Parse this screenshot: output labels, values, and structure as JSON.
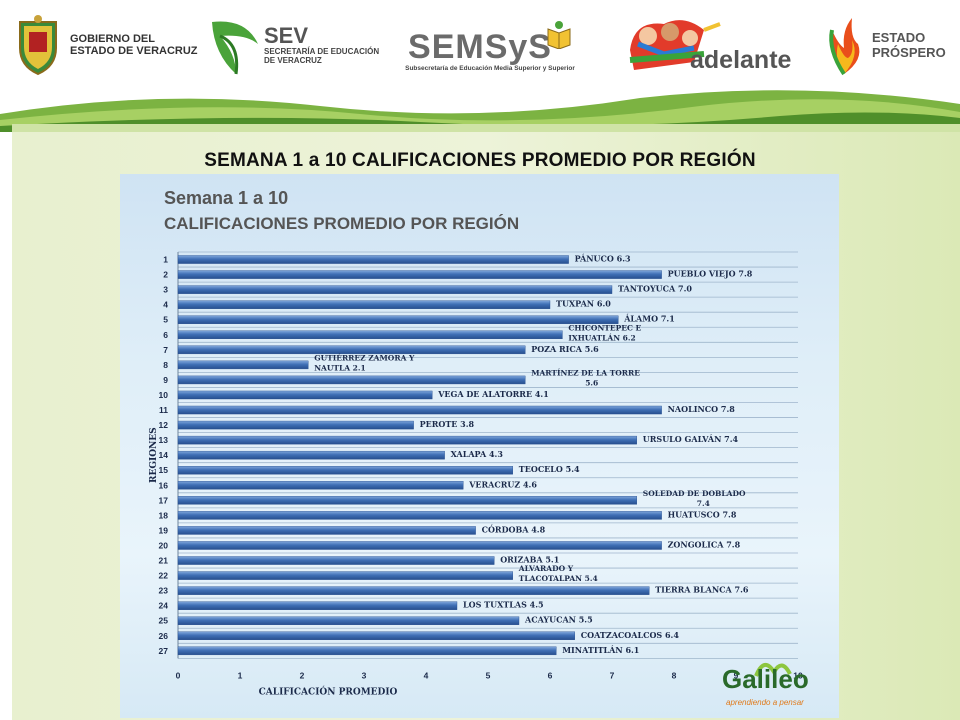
{
  "header": {
    "logos": [
      {
        "name": "gobierno-veracruz",
        "line1": "GOBIERNO DEL",
        "line2": "ESTADO DE VERACRUZ"
      },
      {
        "name": "sev",
        "big": "SEV",
        "line1": "SECRETARÍA DE EDUCACIÓN",
        "line2": "DE VERACRUZ"
      },
      {
        "name": "semsys",
        "big": "SEMSyS",
        "line1": "Subsecretaría de Educación Media Superior y Superior"
      },
      {
        "name": "adelante",
        "big": "adelante"
      },
      {
        "name": "estado-prospero",
        "line1": "ESTADO",
        "line2": "PRÓSPERO"
      }
    ]
  },
  "slide_title": "SEMANA 1 a 10 CALIFICACIONES PROMEDIO POR REGIÓN",
  "chart_image_title": {
    "line1": "Semana 1 a 10",
    "line2": "CALIFICACIONES PROMEDIO POR REGIÓN"
  },
  "galileo": {
    "big": "Galileo",
    "small": "aprendiendo a pensar"
  },
  "colors": {
    "bar": "#3f6fb5",
    "bar_dark": "#274f8f",
    "bar_light": "#7fa6db",
    "wave_green": "#6da63a",
    "label": "#1b2a4a"
  },
  "chart_data": {
    "type": "bar",
    "orientation": "horizontal",
    "xlabel": "CALIFICACIÓN PROMEDIO",
    "ylabel": "REGIONES",
    "xlim": [
      0,
      10
    ],
    "xticks": [
      0,
      1,
      2,
      3,
      4,
      5,
      6,
      7,
      8,
      9,
      10
    ],
    "categories": [
      "1",
      "2",
      "3",
      "4",
      "5",
      "6",
      "7",
      "8",
      "9",
      "10",
      "11",
      "12",
      "13",
      "14",
      "15",
      "16",
      "17",
      "18",
      "19",
      "20",
      "21",
      "22",
      "23",
      "24",
      "25",
      "26",
      "27"
    ],
    "values": [
      6.3,
      7.8,
      7.0,
      6.0,
      7.1,
      6.2,
      5.6,
      2.1,
      5.6,
      4.1,
      7.8,
      3.8,
      7.4,
      4.3,
      5.4,
      4.6,
      7.4,
      7.8,
      4.8,
      7.8,
      5.1,
      5.4,
      7.6,
      4.5,
      5.5,
      6.4,
      6.1
    ],
    "bar_labels": [
      [
        "PÁNUCO  6.3"
      ],
      [
        "PUEBLO VIEJO  7.8"
      ],
      [
        "TANTOYUCA  7.0"
      ],
      [
        "TUXPAN  6.0"
      ],
      [
        "ÁLAMO  7.1"
      ],
      [
        "CHICONTEPEC E",
        "IXHUATLÁN 6.2"
      ],
      [
        "POZA RICA  5.6"
      ],
      [
        "GUTIÉRREZ ZAMORA Y",
        "NAUTLA  2.1"
      ],
      [
        "MARTÍNEZ DE LA TORRE",
        "5.6"
      ],
      [
        "VEGA DE ALATORRE  4.1"
      ],
      [
        "NAOLINCO  7.8"
      ],
      [
        "PEROTE  3.8"
      ],
      [
        "URSULO GALVÁN  7.4"
      ],
      [
        "XALAPA  4.3"
      ],
      [
        "TEOCELO  5.4"
      ],
      [
        "VERACRUZ  4.6"
      ],
      [
        "SOLEDAD DE DOBLADO",
        "7.4"
      ],
      [
        "HUATUSCO  7.8"
      ],
      [
        "CÓRDOBA  4.8"
      ],
      [
        "ZONGOLICA  7.8"
      ],
      [
        "ORIZABA  5.1"
      ],
      [
        "ALVARADO Y",
        "TLACOTALPAN  5.4"
      ],
      [
        "TIERRA BLANCA  7.6"
      ],
      [
        "LOS TUXTLAS  4.5"
      ],
      [
        "ACAYUCAN  5.5"
      ],
      [
        "COATZACOALCOS  6.4"
      ],
      [
        "MINATITLÁN  6.1"
      ]
    ]
  }
}
